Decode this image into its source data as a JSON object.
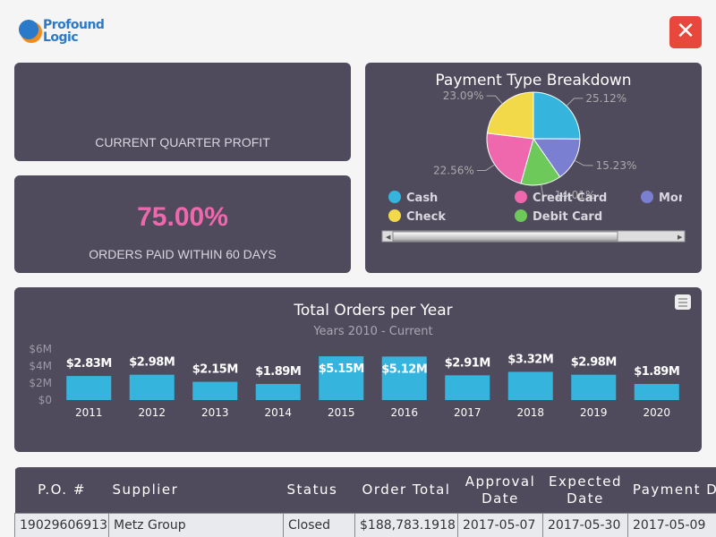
{
  "header": {
    "logo_top": "Profound",
    "logo_bottom": "Logic"
  },
  "cards": [
    {
      "label": "CURRENT QUARTER PROFIT"
    },
    {
      "value": "75.00%",
      "label": "ORDERS PAID WITHIN 60 DAYS"
    }
  ],
  "pie_chart": {
    "type": "pie",
    "title": "Payment Type Breakdown",
    "categories": [
      "Cash",
      "Money Order",
      "Debit Card",
      "Credit Card",
      "Check"
    ],
    "values": [
      25.12,
      15.23,
      14.01,
      22.56,
      23.09
    ],
    "value_labels": [
      "25.12%",
      "15.23%",
      "14.01%",
      "22.56%",
      "23.09%"
    ],
    "colors": [
      "#35b5dd",
      "#7a7fd1",
      "#6cc95a",
      "#ef68ad",
      "#f2d94a"
    ]
  },
  "bar_chart": {
    "type": "bar",
    "title": "Total Orders per Year",
    "subtitle": "Years 2010 - Current",
    "categories": [
      "2011",
      "2012",
      "2013",
      "2014",
      "2015",
      "2016",
      "2017",
      "2018",
      "2019",
      "2020"
    ],
    "values": [
      2830000,
      2980000,
      2150000,
      1890000,
      5150000,
      5120000,
      2910000,
      3320000,
      2980000,
      1890000
    ],
    "value_labels": [
      "$2.83M",
      "$2.98M",
      "$2.15M",
      "$1.89M",
      "$5.15M",
      "$5.12M",
      "$2.91M",
      "$3.32M",
      "$2.98M",
      "$1.89M"
    ],
    "color": "#35b5dd",
    "ylim": [
      0,
      6000000
    ],
    "yticks": [
      {
        "value": 0,
        "label": "$0"
      },
      {
        "value": 2000000,
        "label": "$2M"
      },
      {
        "value": 4000000,
        "label": "$4M"
      },
      {
        "value": 6000000,
        "label": "$6M"
      }
    ]
  },
  "table": {
    "columns": [
      "P.O. #",
      "Supplier",
      "Status",
      "Order Total",
      "Approval Date",
      "Expected Date",
      "Payment Date"
    ],
    "rows": [
      [
        "19029606913",
        "Metz Group",
        "Closed",
        "$188,783.1918",
        "2017-05-07",
        "2017-05-30",
        "2017-05-09"
      ]
    ]
  }
}
